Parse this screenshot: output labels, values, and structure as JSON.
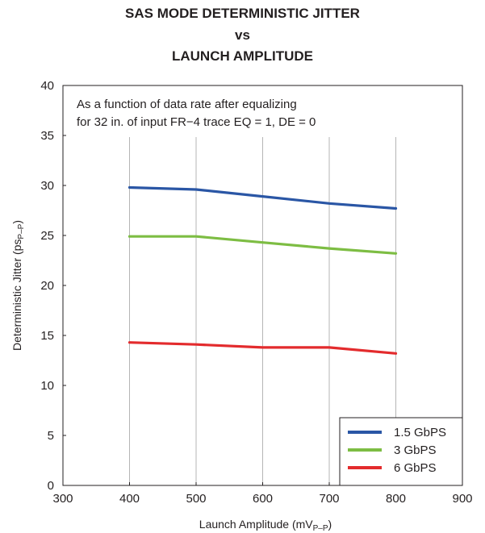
{
  "chart_data": {
    "type": "line",
    "title_lines": [
      "SAS MODE DETERMINISTIC JITTER",
      "vs",
      "LAUNCH AMPLITUDE"
    ],
    "xlabel_main": "Launch Amplitude (mV",
    "xlabel_sub": "P–P",
    "xlabel_end": ")",
    "ylabel_main": "Deterministic Jitter (ps",
    "ylabel_sub": "P–P",
    "ylabel_end": ")",
    "annotation_lines": [
      "As a function of data rate after equalizing",
      "for 32 in. of input FR−4 trace EQ = 1, DE = 0"
    ],
    "xlim": [
      300,
      900
    ],
    "ylim": [
      0,
      40
    ],
    "xticks": [
      "300",
      "400",
      "500",
      "600",
      "700",
      "800",
      "900"
    ],
    "yticks": [
      "0",
      "5",
      "10",
      "15",
      "20",
      "25",
      "30",
      "35",
      "40"
    ],
    "grid": "vertical",
    "legend_position": "bottom-right",
    "x": [
      400,
      500,
      600,
      700,
      800
    ],
    "series": [
      {
        "name": "1.5 GbPS",
        "color": "#2a56a5",
        "values": [
          29.8,
          29.6,
          28.9,
          28.2,
          27.7
        ]
      },
      {
        "name": "3 GbPS",
        "color": "#7dbd43",
        "values": [
          24.9,
          24.9,
          24.3,
          23.7,
          23.2
        ]
      },
      {
        "name": "6 GbPS",
        "color": "#e32b2d",
        "values": [
          14.3,
          14.1,
          13.8,
          13.8,
          13.2
        ]
      }
    ]
  }
}
